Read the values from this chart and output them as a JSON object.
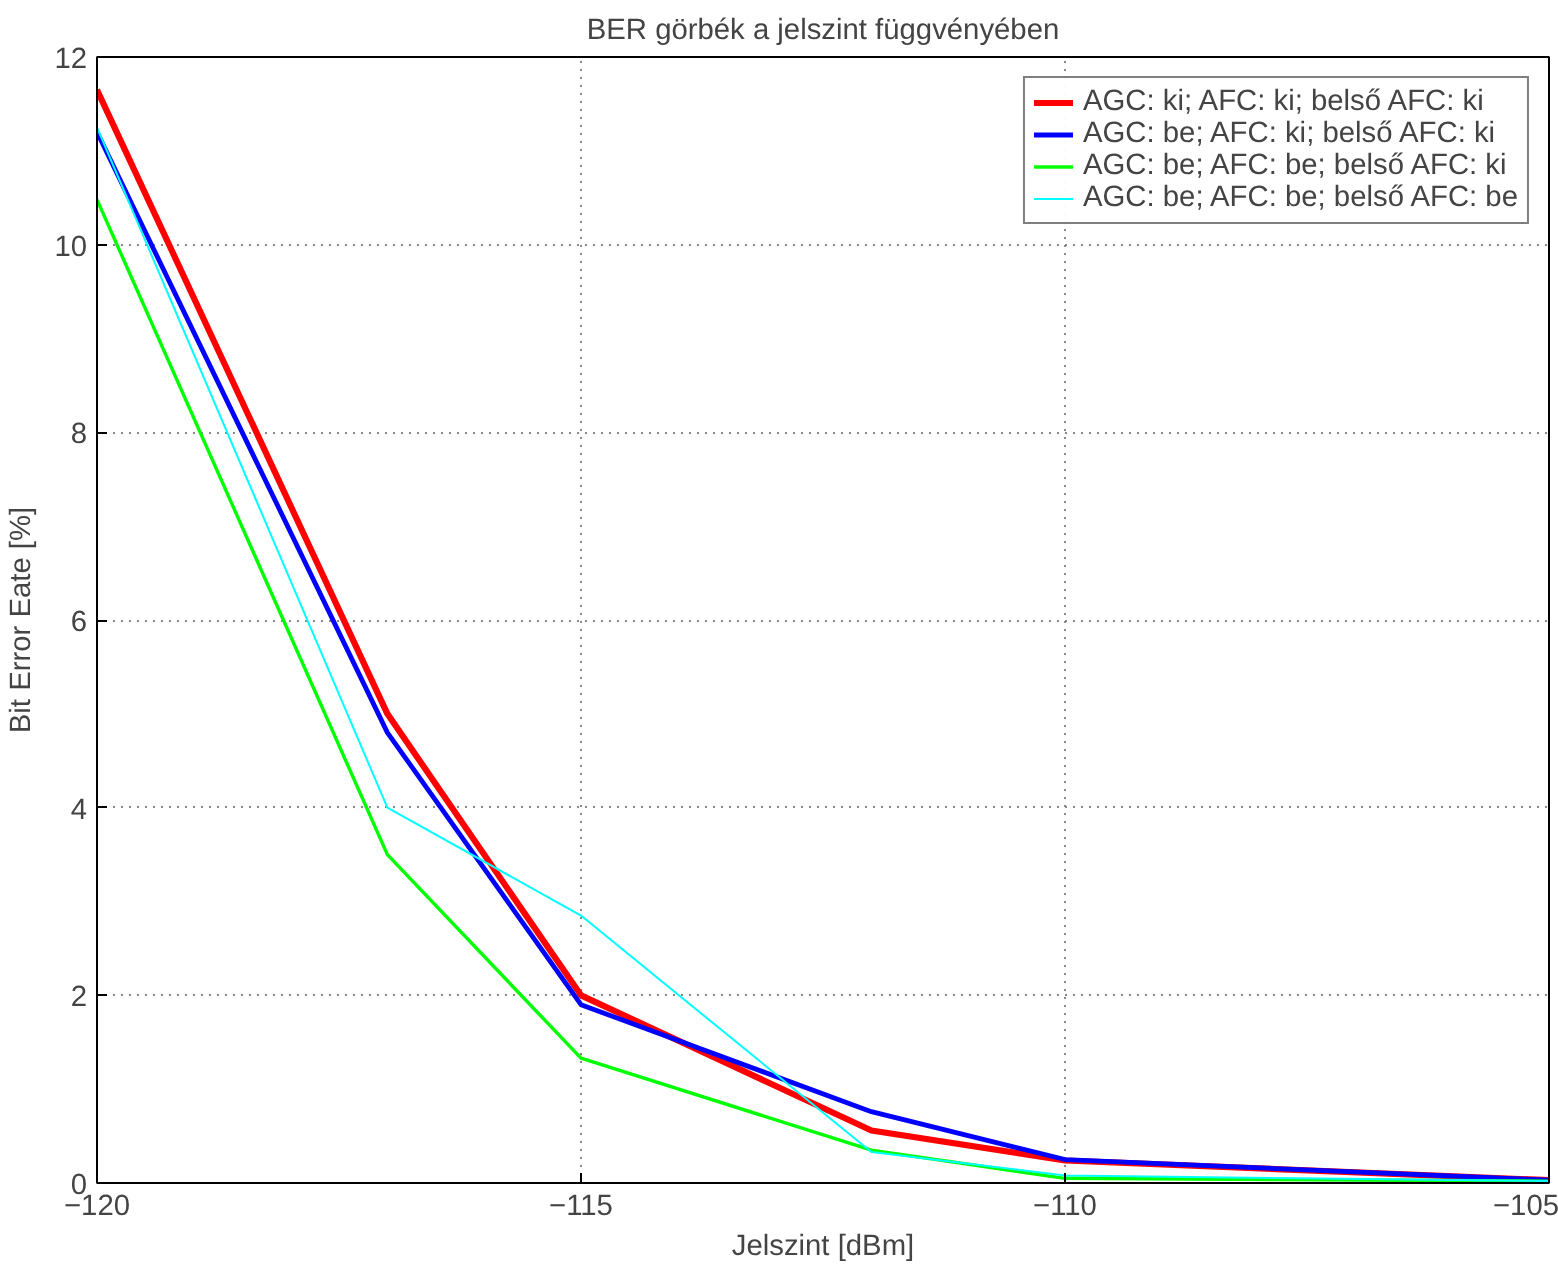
{
  "chart_data": {
    "type": "line",
    "title": "BER görbék a jelszint függvényében",
    "xlabel": "Jelszint [dBm]",
    "ylabel": "Bit Error Eate [%]",
    "x": [
      -120,
      -117,
      -115,
      -112,
      -110,
      -105
    ],
    "series": [
      {
        "name": "AGC: ki; AFC: ki; belső AFC: ki",
        "color": "#ff0000",
        "values": [
          11.65,
          5.0,
          2.0,
          0.56,
          0.24,
          0.03
        ]
      },
      {
        "name": "AGC: be; AFC: ki; belső AFC: ki",
        "color": "#0000ff",
        "values": [
          11.2,
          4.8,
          1.9,
          0.76,
          0.25,
          0.03
        ]
      },
      {
        "name": "AGC: be; AFC: be; belső AFC: ki",
        "color": "#00ff00",
        "values": [
          10.48,
          3.5,
          1.33,
          0.35,
          0.05,
          0.02
        ]
      },
      {
        "name": "AGC: be; AFC: be; belső AFC: be",
        "color": "#00ffff",
        "values": [
          11.25,
          4.0,
          2.85,
          0.33,
          0.08,
          0.02
        ]
      }
    ],
    "xlim": [
      -120,
      -105
    ],
    "ylim": [
      0,
      12
    ],
    "xticks": [
      -120,
      -115,
      -110,
      -105
    ],
    "yticks": [
      0,
      2,
      4,
      6,
      8,
      10,
      12
    ],
    "grid": true,
    "legend": "top right",
    "line_style": "solid",
    "marker": "none"
  }
}
